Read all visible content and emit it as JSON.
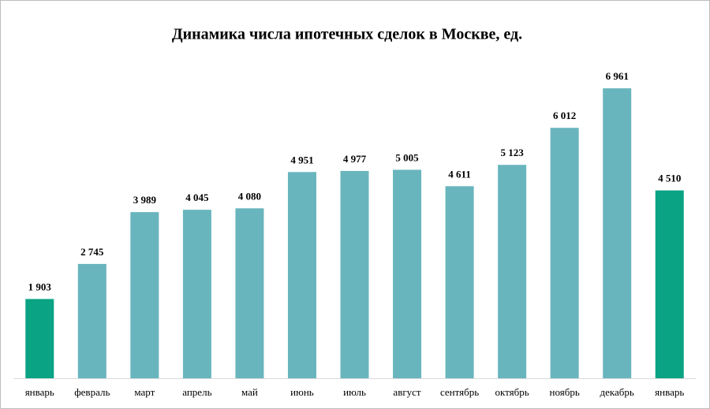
{
  "chart_data": {
    "type": "bar",
    "title": "Динамика числа ипотечных сделок в Москве, ед.",
    "categories": [
      "январь",
      "февраль",
      "март",
      "апрель",
      "май",
      "июнь",
      "июль",
      "август",
      "сентябрь",
      "октябрь",
      "ноябрь",
      "декабрь",
      "январь"
    ],
    "values": [
      1903,
      2745,
      3989,
      4045,
      4080,
      4951,
      4977,
      5005,
      4611,
      5123,
      6012,
      6961,
      4510
    ],
    "value_labels": [
      "1 903",
      "2 745",
      "3 989",
      "4 045",
      "4 080",
      "4 951",
      "4 977",
      "5 005",
      "4 611",
      "5 123",
      "6 012",
      "6 961",
      "4 510"
    ],
    "colors": [
      "#0aa384",
      "#69b5bd",
      "#69b5bd",
      "#69b5bd",
      "#69b5bd",
      "#69b5bd",
      "#69b5bd",
      "#69b5bd",
      "#69b5bd",
      "#69b5bd",
      "#69b5bd",
      "#69b5bd",
      "#0aa384"
    ],
    "ylim": [
      0,
      7000
    ]
  }
}
